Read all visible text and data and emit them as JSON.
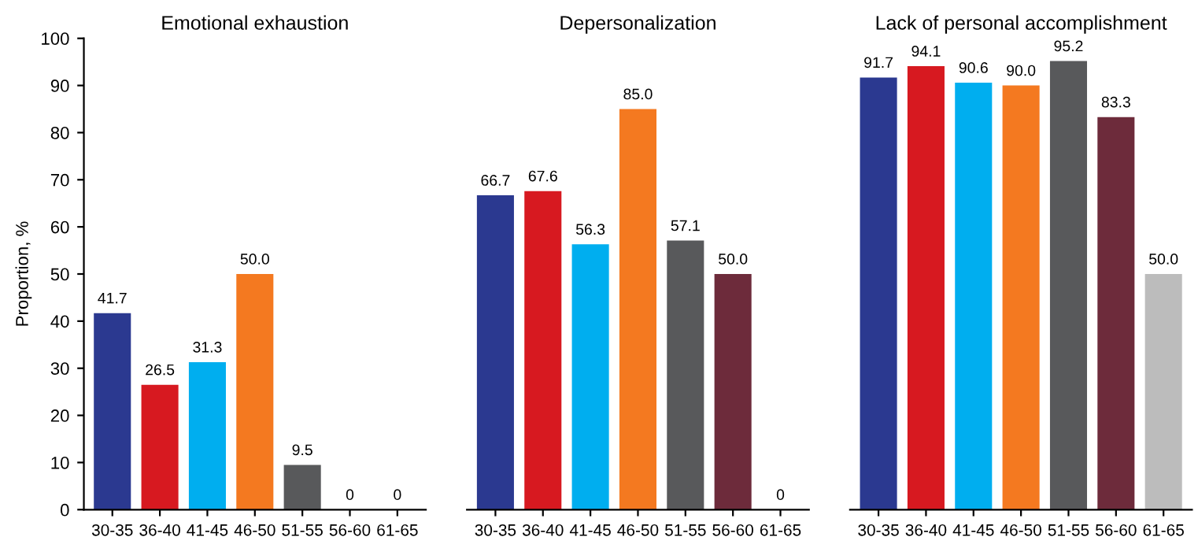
{
  "chart_data": [
    {
      "type": "bar",
      "title": "Emotional exhaustion",
      "ylabel": "Proportion, %",
      "categories": [
        "30-35",
        "36-40",
        "41-45",
        "46-50",
        "51-55",
        "56-60",
        "61-65"
      ],
      "values": [
        41.7,
        26.5,
        31.3,
        50.0,
        9.5,
        0,
        0
      ],
      "value_labels": [
        "41.7",
        "26.5",
        "31.3",
        "50.0",
        "9.5",
        "0",
        "0"
      ],
      "colors": [
        "#2b3990",
        "#d71920",
        "#00aeef",
        "#f47920",
        "#58595b",
        "#6d2b3b",
        "#bcbcbc"
      ],
      "ylim": [
        0,
        100
      ],
      "yticks": [
        0,
        10,
        20,
        30,
        40,
        50,
        60,
        70,
        80,
        90,
        100
      ],
      "grid": false
    },
    {
      "type": "bar",
      "title": "Depersonalization",
      "categories": [
        "30-35",
        "36-40",
        "41-45",
        "46-50",
        "51-55",
        "56-60",
        "61-65"
      ],
      "values": [
        66.7,
        67.6,
        56.3,
        85.0,
        57.1,
        50.0,
        0
      ],
      "value_labels": [
        "66.7",
        "67.6",
        "56.3",
        "85.0",
        "57.1",
        "50.0",
        "0"
      ],
      "colors": [
        "#2b3990",
        "#d71920",
        "#00aeef",
        "#f47920",
        "#58595b",
        "#6d2b3b",
        "#bcbcbc"
      ],
      "ylim": [
        0,
        100
      ],
      "tick_labels": "x",
      "grid": false
    },
    {
      "type": "bar",
      "title": "Lack of personal accomplishment",
      "categories": [
        "30-35",
        "36-40",
        "41-45",
        "46-50",
        "51-55",
        "56-60",
        "61-65"
      ],
      "values": [
        91.7,
        94.1,
        90.6,
        90.0,
        95.2,
        83.3,
        50.0
      ],
      "value_labels": [
        "91.7",
        "94.1",
        "90.6",
        "90.0",
        "95.2",
        "83.3",
        "50.0"
      ],
      "colors": [
        "#2b3990",
        "#d71920",
        "#00aeef",
        "#f47920",
        "#58595b",
        "#6d2b3b",
        "#bcbcbc"
      ],
      "ylim": [
        0,
        100
      ],
      "tick_labels": "x",
      "grid": false
    }
  ]
}
